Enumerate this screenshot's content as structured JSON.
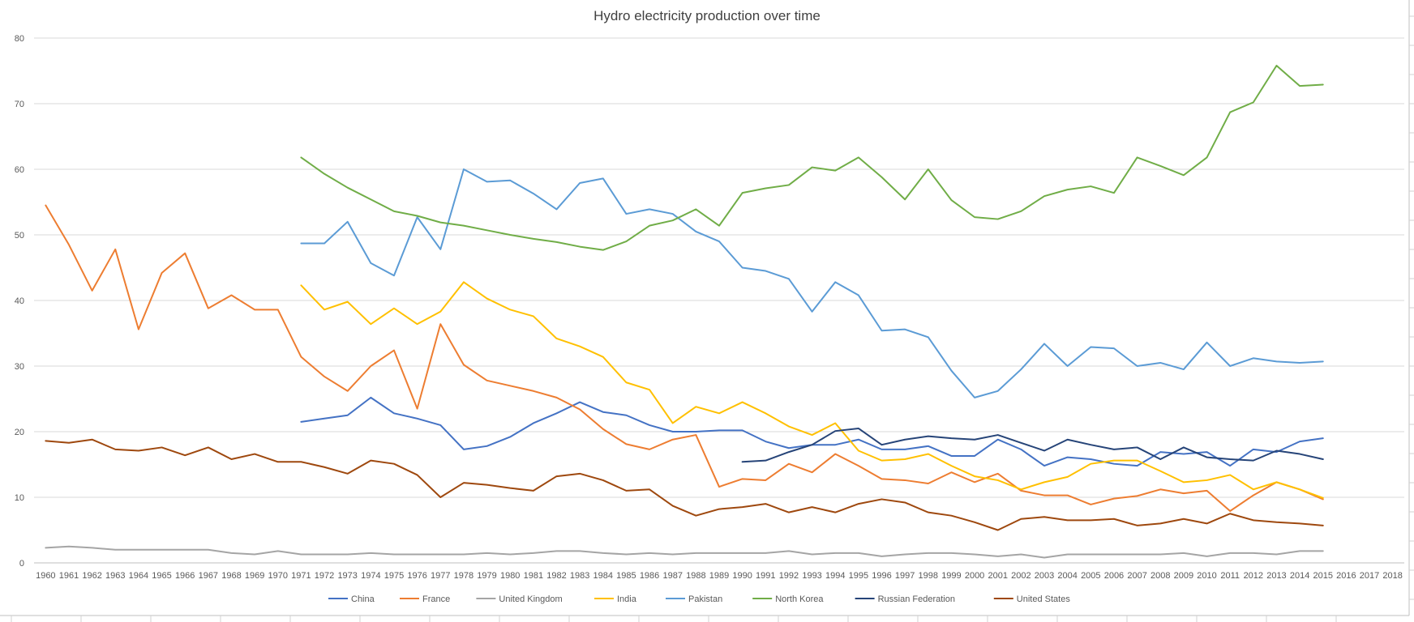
{
  "chart_data": {
    "type": "line",
    "title": "Hydro electricity production over time",
    "xlabel": "",
    "ylabel": "",
    "ylim": [
      0,
      80
    ],
    "yticks": [
      0,
      10,
      20,
      30,
      40,
      50,
      60,
      70,
      80
    ],
    "grid": true,
    "legend_position": "bottom",
    "categories": [
      "1960",
      "1961",
      "1962",
      "1963",
      "1964",
      "1965",
      "1966",
      "1967",
      "1968",
      "1969",
      "1970",
      "1971",
      "1972",
      "1973",
      "1974",
      "1975",
      "1976",
      "1977",
      "1978",
      "1979",
      "1980",
      "1981",
      "1982",
      "1983",
      "1984",
      "1985",
      "1986",
      "1987",
      "1988",
      "1989",
      "1990",
      "1991",
      "1992",
      "1993",
      "1994",
      "1995",
      "1996",
      "1997",
      "1998",
      "1999",
      "2000",
      "2001",
      "2002",
      "2003",
      "2004",
      "2005",
      "2006",
      "2007",
      "2008",
      "2009",
      "2010",
      "2011",
      "2012",
      "2013",
      "2014",
      "2015",
      "2016",
      "2017",
      "2018"
    ],
    "series": [
      {
        "name": "China",
        "color": "#4472C4",
        "values": [
          null,
          null,
          null,
          null,
          null,
          null,
          null,
          null,
          null,
          null,
          null,
          21.5,
          22.0,
          22.5,
          25.2,
          22.8,
          22.0,
          21.0,
          17.3,
          17.8,
          19.2,
          21.3,
          22.8,
          24.5,
          23.0,
          22.5,
          21.0,
          20.0,
          20.0,
          20.2,
          20.2,
          18.5,
          17.5,
          18.0,
          18.0,
          18.8,
          17.3,
          17.3,
          17.8,
          16.3,
          16.3,
          18.8,
          17.3,
          14.8,
          16.1,
          15.8,
          15.1,
          14.8,
          16.9,
          16.6,
          16.9,
          14.8,
          17.3,
          16.9,
          18.5,
          19.0,
          null,
          null,
          null
        ]
      },
      {
        "name": "France",
        "color": "#ED7D31",
        "values": [
          54.5,
          48.5,
          41.5,
          47.8,
          35.6,
          44.2,
          47.2,
          38.8,
          40.8,
          38.6,
          38.6,
          31.4,
          28.4,
          26.2,
          30.0,
          32.4,
          23.5,
          36.4,
          30.2,
          27.8,
          27.0,
          26.2,
          25.2,
          23.4,
          20.4,
          18.1,
          17.3,
          18.8,
          19.5,
          11.6,
          12.8,
          12.6,
          15.1,
          13.8,
          16.6,
          14.8,
          12.8,
          12.6,
          12.1,
          13.8,
          12.3,
          13.6,
          11.0,
          10.3,
          10.3,
          8.9,
          9.8,
          10.2,
          11.2,
          10.6,
          11.0,
          7.9,
          10.3,
          12.3,
          11.2,
          9.7,
          null,
          null,
          null
        ]
      },
      {
        "name": "United Kingdom",
        "color": "#A5A5A5",
        "values": [
          2.3,
          2.5,
          2.3,
          2.0,
          2.0,
          2.0,
          2.0,
          2.0,
          1.5,
          1.3,
          1.8,
          1.3,
          1.3,
          1.3,
          1.5,
          1.3,
          1.3,
          1.3,
          1.3,
          1.5,
          1.3,
          1.5,
          1.8,
          1.8,
          1.5,
          1.3,
          1.5,
          1.3,
          1.5,
          1.5,
          1.5,
          1.5,
          1.8,
          1.3,
          1.5,
          1.5,
          1.0,
          1.3,
          1.5,
          1.5,
          1.3,
          1.0,
          1.3,
          0.8,
          1.3,
          1.3,
          1.3,
          1.3,
          1.3,
          1.5,
          1.0,
          1.5,
          1.5,
          1.3,
          1.8,
          1.8,
          null,
          null,
          null
        ]
      },
      {
        "name": "India",
        "color": "#FFC000",
        "values": [
          null,
          null,
          null,
          null,
          null,
          null,
          null,
          null,
          null,
          null,
          null,
          42.3,
          38.6,
          39.8,
          36.4,
          38.8,
          36.4,
          38.3,
          42.8,
          40.3,
          38.6,
          37.6,
          34.2,
          33.0,
          31.4,
          27.5,
          26.4,
          21.3,
          23.8,
          22.8,
          24.5,
          22.8,
          20.8,
          19.5,
          21.3,
          17.1,
          15.6,
          15.8,
          16.6,
          14.8,
          13.2,
          12.6,
          11.2,
          12.3,
          13.1,
          15.1,
          15.6,
          15.6,
          14.0,
          12.3,
          12.6,
          13.4,
          11.2,
          12.3,
          11.2,
          9.9,
          null,
          null,
          null
        ]
      },
      {
        "name": "Pakistan",
        "color": "#5B9BD5",
        "values": [
          null,
          null,
          null,
          null,
          null,
          null,
          null,
          null,
          null,
          null,
          null,
          48.7,
          48.7,
          52.0,
          45.7,
          43.8,
          52.7,
          47.8,
          60.0,
          58.1,
          58.3,
          56.3,
          53.9,
          57.9,
          58.6,
          53.2,
          53.9,
          53.2,
          50.5,
          49.0,
          45.0,
          44.5,
          43.3,
          38.3,
          42.8,
          40.8,
          35.4,
          35.6,
          34.4,
          29.3,
          25.2,
          26.2,
          29.5,
          33.4,
          30.0,
          32.9,
          32.7,
          30.0,
          30.5,
          29.5,
          33.6,
          30.0,
          31.2,
          30.7,
          30.5,
          30.7,
          null,
          null,
          null
        ]
      },
      {
        "name": "North Korea",
        "color": "#70AD47",
        "values": [
          null,
          null,
          null,
          null,
          null,
          null,
          null,
          null,
          null,
          null,
          null,
          61.8,
          59.3,
          57.2,
          55.4,
          53.6,
          52.9,
          51.9,
          51.4,
          50.7,
          50.0,
          49.4,
          48.9,
          48.2,
          47.7,
          49.0,
          51.4,
          52.2,
          53.9,
          51.4,
          56.4,
          57.1,
          57.6,
          60.3,
          59.8,
          61.8,
          58.8,
          55.4,
          60.0,
          55.3,
          52.7,
          52.4,
          53.6,
          55.9,
          56.9,
          57.4,
          56.4,
          61.8,
          60.5,
          59.1,
          61.8,
          68.7,
          70.2,
          75.8,
          72.7,
          72.9,
          null,
          null,
          null
        ]
      },
      {
        "name": "Russian Federation",
        "color": "#264478",
        "values": [
          null,
          null,
          null,
          null,
          null,
          null,
          null,
          null,
          null,
          null,
          null,
          null,
          null,
          null,
          null,
          null,
          null,
          null,
          null,
          null,
          null,
          null,
          null,
          null,
          null,
          null,
          null,
          null,
          null,
          null,
          15.4,
          15.6,
          16.9,
          18.0,
          20.1,
          20.5,
          18.0,
          18.8,
          19.3,
          19.0,
          18.8,
          19.5,
          18.3,
          17.1,
          18.8,
          18.0,
          17.3,
          17.6,
          15.8,
          17.6,
          16.1,
          15.8,
          15.6,
          17.1,
          16.6,
          15.8,
          null,
          null,
          null
        ]
      },
      {
        "name": "United States",
        "color": "#9E480E",
        "values": [
          18.6,
          18.3,
          18.8,
          17.3,
          17.1,
          17.6,
          16.4,
          17.6,
          15.8,
          16.6,
          15.4,
          15.4,
          14.6,
          13.6,
          15.6,
          15.1,
          13.4,
          10.0,
          12.2,
          11.9,
          11.4,
          11.0,
          13.2,
          13.6,
          12.6,
          11.0,
          11.2,
          8.7,
          7.2,
          8.2,
          8.5,
          9.0,
          7.7,
          8.5,
          7.7,
          9.0,
          9.7,
          9.2,
          7.7,
          7.2,
          6.2,
          5.0,
          6.7,
          7.0,
          6.5,
          6.5,
          6.7,
          5.7,
          6.0,
          6.7,
          6.0,
          7.5,
          6.5,
          6.2,
          6.0,
          5.7,
          null,
          null,
          null
        ]
      }
    ]
  }
}
